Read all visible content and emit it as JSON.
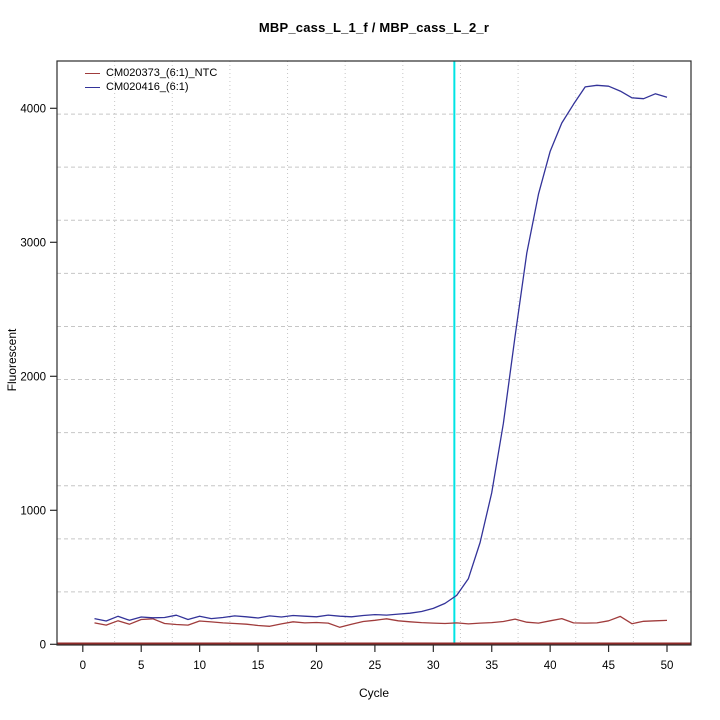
{
  "title": "MBP_cass_L_1_f / MBP_cass_L_2_r",
  "colors": {
    "ntc_line": "#A03C3C",
    "sample_line": "#333399",
    "ct_marker": "#00E4E4",
    "threshold_line": "#8E2A28",
    "grid": "#C6C6C6",
    "box": "#2B2B2B",
    "text": "#000000"
  },
  "chart_data": {
    "type": "line",
    "title": "MBP_cass_L_1_f / MBP_cass_L_2_r",
    "xlabel": "Cycle",
    "ylabel": "Fluorescent",
    "xlim": [
      -1,
      52
    ],
    "ylim": [
      -5,
      4355
    ],
    "x_ticks": [
      0,
      5,
      10,
      15,
      20,
      25,
      30,
      35,
      40,
      45,
      50
    ],
    "y_ticks": [
      0,
      1000,
      2000,
      3000,
      4000
    ],
    "grid": {
      "visible": true,
      "nx": 11,
      "ny": 11,
      "h_style": "dashed",
      "v_style": "dotted"
    },
    "legend_position": "top-left",
    "ct_marker_cycle": 31.8,
    "threshold_value": 0,
    "x": [
      1,
      2,
      3,
      4,
      5,
      6,
      7,
      8,
      9,
      10,
      11,
      12,
      13,
      14,
      15,
      16,
      17,
      18,
      19,
      20,
      21,
      22,
      23,
      24,
      25,
      26,
      27,
      28,
      29,
      30,
      31,
      32,
      33,
      34,
      35,
      36,
      37,
      38,
      39,
      40,
      41,
      42,
      43,
      44,
      45,
      46,
      47,
      48,
      49,
      50
    ],
    "series": [
      {
        "name": "CM020373_(6:1)_NTC",
        "color": "#A03C3C",
        "values": [
          160,
          143,
          175,
          150,
          185,
          190,
          155,
          148,
          143,
          174,
          167,
          160,
          155,
          150,
          140,
          134,
          152,
          168,
          160,
          163,
          158,
          127,
          150,
          170,
          179,
          190,
          175,
          168,
          162,
          158,
          155,
          160,
          152,
          158,
          162,
          170,
          188,
          165,
          158,
          175,
          192,
          160,
          158,
          160,
          175,
          208,
          154,
          172,
          175,
          178
        ]
      },
      {
        "name": "CM020416_(6:1)",
        "color": "#333399",
        "values": [
          192,
          174,
          209,
          179,
          204,
          198,
          200,
          217,
          185,
          210,
          192,
          200,
          212,
          205,
          196,
          212,
          204,
          215,
          210,
          205,
          218,
          210,
          205,
          215,
          222,
          218,
          225,
          232,
          245,
          268,
          305,
          365,
          490,
          760,
          1130,
          1650,
          2300,
          2920,
          3360,
          3680,
          3890,
          4030,
          4160,
          4172,
          4165,
          4128,
          4078,
          4072,
          4108,
          4082
        ]
      }
    ]
  }
}
